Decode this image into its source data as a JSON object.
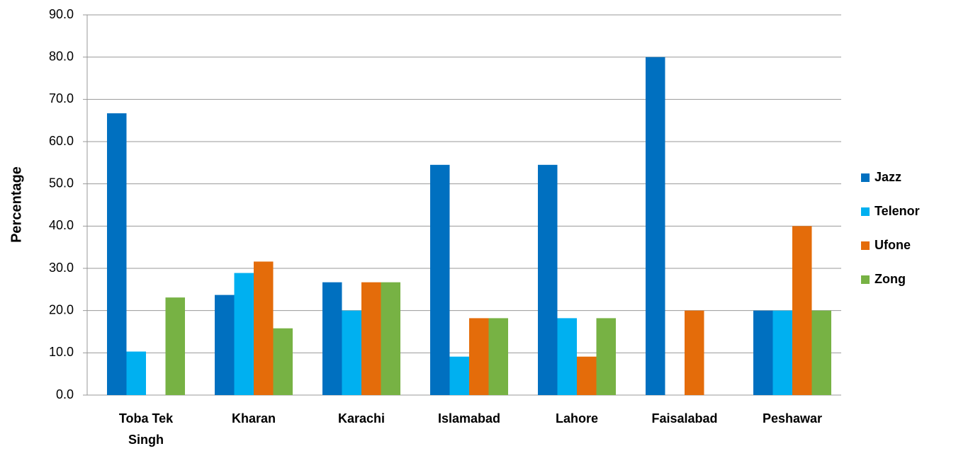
{
  "chart_data": {
    "type": "bar",
    "y_label": "Percentage",
    "categories": [
      "Toba Tek Singh",
      "Kharan",
      "Karachi",
      "Islamabad",
      "Lahore",
      "Faisalabad",
      "Peshawar"
    ],
    "series": [
      {
        "name": "Jazz",
        "color": "#0070c0",
        "values": [
          66.7,
          23.7,
          26.7,
          54.5,
          54.5,
          80.0,
          20.0
        ]
      },
      {
        "name": "Telenor",
        "color": "#00b0f0",
        "values": [
          10.3,
          28.9,
          20.0,
          9.1,
          18.2,
          0,
          20.0
        ]
      },
      {
        "name": "Ufone",
        "color": "#e46c0a",
        "values": [
          0,
          31.6,
          26.7,
          18.2,
          9.1,
          20.0,
          40.0
        ]
      },
      {
        "name": "Zong",
        "color": "#77b244",
        "values": [
          23.1,
          15.8,
          26.7,
          18.2,
          18.2,
          0,
          20.0
        ]
      }
    ],
    "ylim": [
      0,
      90
    ],
    "yticks": [
      {
        "value": 0,
        "label": "0.0"
      },
      {
        "value": 10,
        "label": "10.0"
      },
      {
        "value": 20,
        "label": "20.0"
      },
      {
        "value": 30,
        "label": "30.0"
      },
      {
        "value": 40,
        "label": "40.0"
      },
      {
        "value": 50,
        "label": "50.0"
      },
      {
        "value": 60,
        "label": "60.0"
      },
      {
        "value": 70,
        "label": "70.0"
      },
      {
        "value": 80,
        "label": "80.0"
      },
      {
        "value": 90,
        "label": "90.0"
      }
    ],
    "grid": true,
    "legend": "right"
  }
}
